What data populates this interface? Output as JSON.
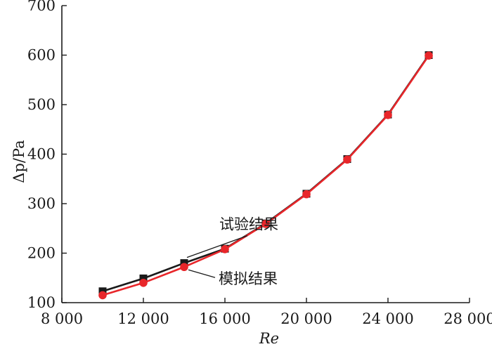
{
  "chart_data": {
    "type": "line",
    "xlabel": "Re",
    "ylabel": "Δp/Pa",
    "xlim": [
      8000,
      28000
    ],
    "ylim": [
      100,
      700
    ],
    "x_ticks": [
      8000,
      12000,
      16000,
      20000,
      24000,
      28000
    ],
    "x_tick_labels": [
      "8 000",
      "12 000",
      "16 000",
      "20 000",
      "24 000",
      "28 000"
    ],
    "y_ticks": [
      100,
      200,
      300,
      400,
      500,
      600,
      700
    ],
    "y_tick_labels": [
      "100",
      "200",
      "300",
      "400",
      "500",
      "600",
      "700"
    ],
    "grid": false,
    "series": [
      {
        "name": "试验结果",
        "color": "#1a1a1a",
        "marker": "square",
        "x": [
          10000,
          12000,
          14000,
          16000,
          18000,
          20000,
          22000,
          24000,
          26000
        ],
        "y": [
          123,
          149,
          180,
          209,
          260,
          320,
          390,
          480,
          600
        ]
      },
      {
        "name": "模拟结果",
        "color": "#e8262a",
        "marker": "circle",
        "x": [
          10000,
          12000,
          14000,
          16000,
          18000,
          20000,
          22000,
          24000,
          26000
        ],
        "y": [
          115,
          140,
          172,
          208,
          259,
          319,
          389,
          479,
          599
        ]
      }
    ]
  }
}
